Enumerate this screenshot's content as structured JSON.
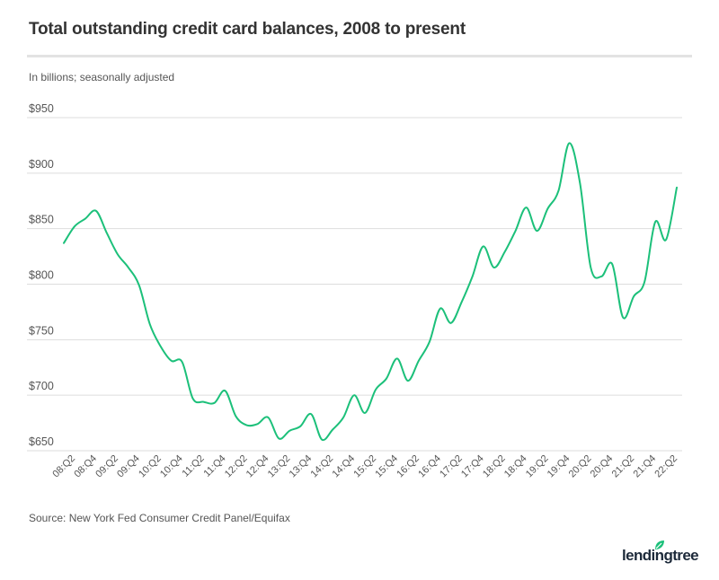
{
  "header": {
    "title": "Total outstanding credit card balances, 2008 to present",
    "subtitle": "In billions; seasonally adjusted"
  },
  "footer": {
    "source": "Source: New York Fed Consumer Credit Panel/Equifax",
    "logo_text": "lendingtree",
    "logo_icon": "leaf-icon"
  },
  "colors": {
    "line": "#1cc07a",
    "grid": "#dddddd",
    "text": "#555555",
    "title": "#333333",
    "logo_leaf": "#1cc07a",
    "logo_text": "#1d2a3a"
  },
  "chart_data": {
    "type": "line",
    "title": "Total outstanding credit card balances, 2008 to present",
    "subtitle": "In billions; seasonally adjusted",
    "xlabel": "",
    "ylabel": "",
    "ylim": [
      650,
      950
    ],
    "yticks": [
      650,
      700,
      750,
      800,
      850,
      900,
      950
    ],
    "ytick_labels": [
      "$650",
      "$700",
      "$750",
      "$800",
      "$850",
      "$900",
      "$950"
    ],
    "grid": true,
    "legend": "none",
    "x": [
      "08:Q1",
      "08:Q2",
      "08:Q3",
      "08:Q4",
      "09:Q1",
      "09:Q2",
      "09:Q3",
      "09:Q4",
      "10:Q1",
      "10:Q2",
      "10:Q3",
      "10:Q4",
      "11:Q1",
      "11:Q2",
      "11:Q3",
      "11:Q4",
      "12:Q1",
      "12:Q2",
      "12:Q3",
      "12:Q4",
      "13:Q1",
      "13:Q2",
      "13:Q3",
      "13:Q4",
      "14:Q1",
      "14:Q2",
      "14:Q3",
      "14:Q4",
      "15:Q1",
      "15:Q2",
      "15:Q3",
      "15:Q4",
      "16:Q1",
      "16:Q2",
      "16:Q3",
      "16:Q4",
      "17:Q1",
      "17:Q2",
      "17:Q3",
      "17:Q4",
      "18:Q1",
      "18:Q2",
      "18:Q3",
      "18:Q4",
      "19:Q1",
      "19:Q2",
      "19:Q3",
      "19:Q4",
      "20:Q1",
      "20:Q2",
      "20:Q3",
      "20:Q4",
      "21:Q1",
      "21:Q2",
      "21:Q3",
      "21:Q4",
      "22:Q1",
      "22:Q2"
    ],
    "xtick_labels": [
      "08:Q2",
      "08:Q4",
      "09:Q2",
      "09:Q4",
      "10:Q2",
      "10:Q4",
      "11:Q2",
      "11:Q4",
      "12:Q2",
      "12:Q4",
      "13:Q2",
      "13:Q4",
      "14:Q2",
      "14:Q4",
      "15:Q2",
      "15:Q4",
      "16:Q2",
      "16:Q4",
      "17:Q2",
      "17:Q4",
      "18:Q2",
      "18:Q4",
      "19:Q2",
      "19:Q4",
      "20:Q2",
      "20:Q4",
      "21:Q2",
      "21:Q4",
      "22:Q2"
    ],
    "series": [
      {
        "name": "Credit card balances",
        "values": [
          837,
          852,
          859,
          866,
          846,
          827,
          815,
          799,
          764,
          744,
          731,
          730,
          697,
          694,
          693,
          704,
          681,
          673,
          674,
          680,
          661,
          668,
          672,
          683,
          660,
          669,
          680,
          700,
          684,
          705,
          715,
          733,
          713,
          731,
          748,
          778,
          765,
          784,
          807,
          834,
          815,
          829,
          848,
          869,
          848,
          868,
          884,
          927,
          891,
          815,
          807,
          818,
          770,
          789,
          802,
          856,
          840,
          887
        ]
      }
    ]
  }
}
